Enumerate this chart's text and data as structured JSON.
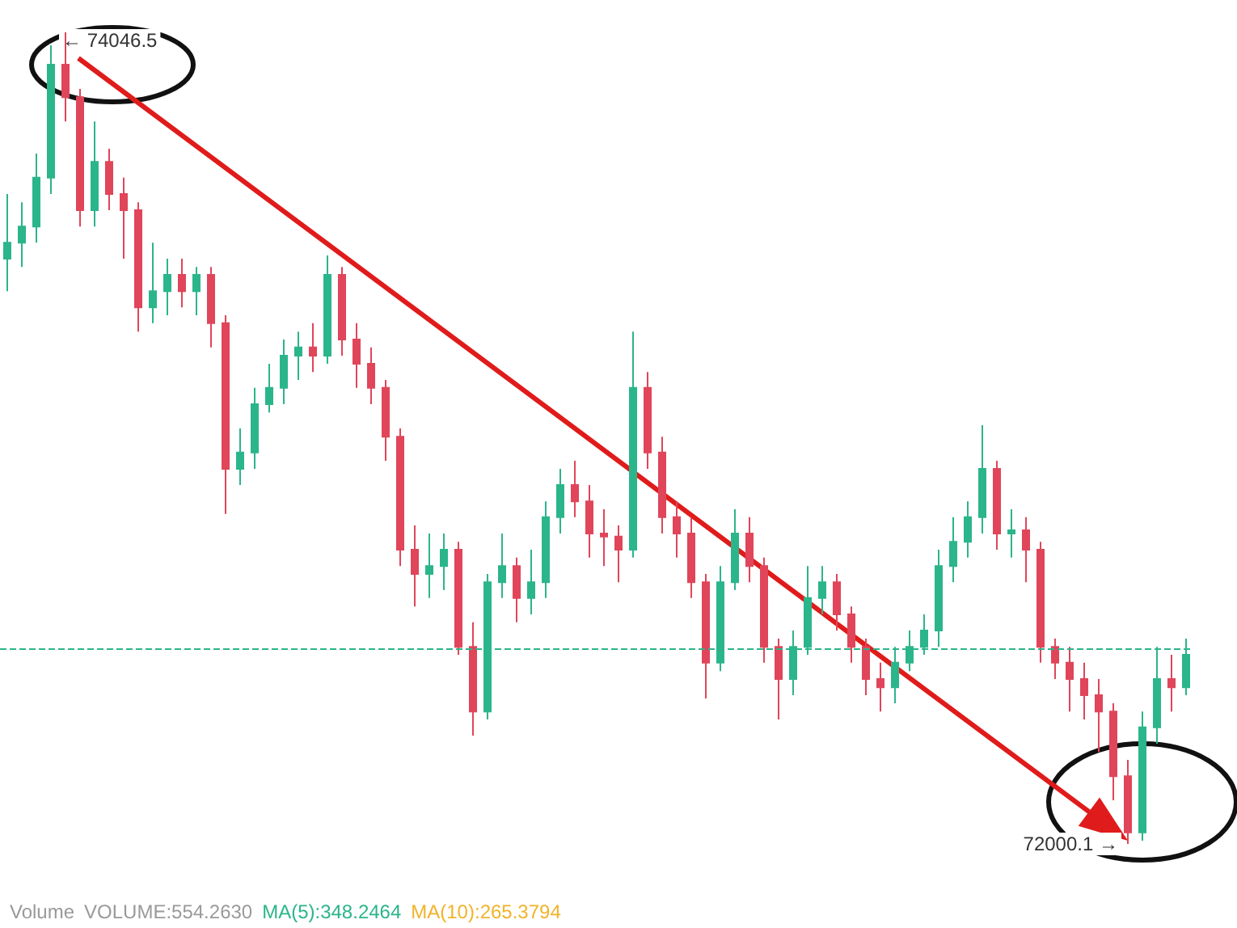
{
  "chart_data": {
    "type": "candlestick",
    "categories": [
      null,
      null,
      null,
      null,
      null,
      null,
      null,
      null,
      null,
      null,
      null,
      null,
      null,
      null,
      null,
      null,
      null,
      null,
      null,
      null,
      null,
      null,
      null,
      null,
      null,
      null,
      null,
      null,
      null,
      null,
      null,
      null,
      null,
      null,
      null,
      null,
      null,
      null,
      null,
      null,
      null,
      null,
      null,
      null,
      null,
      null,
      null,
      null,
      null,
      null,
      null,
      null,
      null,
      null,
      null,
      null,
      null,
      null,
      null,
      null,
      null,
      null,
      null,
      null,
      null,
      null,
      null,
      null,
      null,
      null,
      null,
      null,
      null,
      null,
      null,
      null,
      null,
      null,
      null,
      null,
      null,
      null
    ],
    "colors": [
      "#2bb58a",
      "#2bb58a",
      "#2bb58a",
      "#2bb58a",
      "#e0455a",
      "#e0455a",
      "#2bb58a",
      "#e0455a",
      "#e0455a",
      "#e0455a",
      "#2bb58a",
      "#2bb58a",
      "#e0455a",
      "#2bb58a",
      "#e0455a",
      "#e0455a",
      "#2bb58a",
      "#2bb58a",
      "#2bb58a",
      "#2bb58a",
      "#2bb58a",
      "#e0455a",
      "#2bb58a",
      "#e0455a",
      "#e0455a",
      "#e0455a",
      "#e0455a",
      "#e0455a",
      "#e0455a",
      "#2bb58a",
      "#2bb58a",
      "#e0455a",
      "#e0455a",
      "#2bb58a",
      "#2bb58a",
      "#e0455a",
      "#2bb58a",
      "#2bb58a",
      "#2bb58a",
      "#e0455a",
      "#e0455a",
      "#e0455a",
      "#e0455a",
      "#2bb58a",
      "#e0455a",
      "#e0455a",
      "#e0455a",
      "#e0455a",
      "#e0455a",
      "#2bb58a",
      "#2bb58a",
      "#e0455a",
      "#e0455a",
      "#e0455a",
      "#2bb58a",
      "#2bb58a",
      "#2bb58a",
      "#e0455a",
      "#e0455a",
      "#e0455a",
      "#e0455a",
      "#2bb58a",
      "#2bb58a",
      "#2bb58a",
      "#2bb58a",
      "#2bb58a",
      "#2bb58a",
      "#2bb58a",
      "#e0455a",
      "#2bb58a",
      "#e0455a",
      "#e0455a",
      "#e0455a",
      "#e0455a",
      "#e0455a",
      "#e0455a",
      "#e0455a",
      "#e0455a",
      "#2bb58a",
      "#2bb58a",
      "#e0455a",
      "#2bb58a"
    ],
    "ohlc": [
      [
        73476,
        73639,
        73394,
        73516
      ],
      [
        73516,
        73618,
        73455,
        73557
      ],
      [
        73557,
        73741,
        73516,
        73680
      ],
      [
        73680,
        74014,
        73639,
        73965
      ],
      [
        73965,
        74046.5,
        73822,
        73883
      ],
      [
        73883,
        73904,
        73557,
        73598
      ],
      [
        73598,
        73822,
        73557,
        73720
      ],
      [
        73720,
        73753,
        73598,
        73639
      ],
      [
        73639,
        73680,
        73476,
        73598
      ],
      [
        73598,
        73618,
        73292,
        73353
      ],
      [
        73353,
        73516,
        73313,
        73394
      ],
      [
        73394,
        73476,
        73333,
        73435
      ],
      [
        73435,
        73476,
        73353,
        73394
      ],
      [
        73394,
        73455,
        73333,
        73435
      ],
      [
        73435,
        73455,
        73252,
        73313
      ],
      [
        73313,
        73333,
        72832,
        72946
      ],
      [
        72946,
        73048,
        72905,
        72987
      ],
      [
        72987,
        73150,
        72946,
        73109
      ],
      [
        73109,
        73211,
        73088,
        73150
      ],
      [
        73150,
        73272,
        73109,
        73231
      ],
      [
        73231,
        73292,
        73170,
        73252
      ],
      [
        73252,
        73313,
        73190,
        73231
      ],
      [
        73231,
        73484,
        73211,
        73435
      ],
      [
        73435,
        73455,
        73231,
        73272
      ],
      [
        73272,
        73313,
        73150,
        73211
      ],
      [
        73211,
        73252,
        73109,
        73150
      ],
      [
        73150,
        73170,
        72966,
        73027
      ],
      [
        73027,
        73048,
        72701,
        72742
      ],
      [
        72742,
        72803,
        72599,
        72681
      ],
      [
        72681,
        72783,
        72620,
        72701
      ],
      [
        72701,
        72783,
        72640,
        72742
      ],
      [
        72742,
        72762,
        72477,
        72497
      ],
      [
        72497,
        72559,
        72273,
        72334
      ],
      [
        72334,
        72681,
        72314,
        72660
      ],
      [
        72660,
        72783,
        72620,
        72701
      ],
      [
        72701,
        72722,
        72559,
        72620
      ],
      [
        72620,
        72742,
        72579,
        72660
      ],
      [
        72660,
        72864,
        72620,
        72824
      ],
      [
        72824,
        72946,
        72783,
        72905
      ],
      [
        72905,
        72966,
        72824,
        72864
      ],
      [
        72864,
        72905,
        72722,
        72783
      ],
      [
        72783,
        72844,
        72701,
        72775
      ],
      [
        72775,
        72803,
        72660,
        72742
      ],
      [
        72742,
        73292,
        72722,
        73150
      ],
      [
        73150,
        73190,
        72946,
        72987
      ],
      [
        72987,
        73027,
        72783,
        72824
      ],
      [
        72824,
        72864,
        72722,
        72783
      ],
      [
        72783,
        72824,
        72620,
        72660
      ],
      [
        72660,
        72681,
        72367,
        72457
      ],
      [
        72457,
        72701,
        72436,
        72660
      ],
      [
        72660,
        72844,
        72640,
        72783
      ],
      [
        72783,
        72824,
        72660,
        72701
      ],
      [
        72701,
        72722,
        72457,
        72497
      ],
      [
        72497,
        72518,
        72314,
        72416
      ],
      [
        72416,
        72538,
        72375,
        72497
      ],
      [
        72497,
        72701,
        72477,
        72620
      ],
      [
        72620,
        72701,
        72579,
        72660
      ],
      [
        72660,
        72681,
        72538,
        72579
      ],
      [
        72579,
        72599,
        72457,
        72497
      ],
      [
        72497,
        72518,
        72375,
        72416
      ],
      [
        72416,
        72457,
        72334,
        72395
      ],
      [
        72395,
        72497,
        72355,
        72457
      ],
      [
        72457,
        72538,
        72436,
        72497
      ],
      [
        72497,
        72579,
        72477,
        72538
      ],
      [
        72538,
        72742,
        72497,
        72701
      ],
      [
        72701,
        72824,
        72660,
        72762
      ],
      [
        72762,
        72864,
        72722,
        72824
      ],
      [
        72824,
        73056,
        72783,
        72946
      ],
      [
        72946,
        72966,
        72742,
        72783
      ],
      [
        72783,
        72844,
        72722,
        72791
      ],
      [
        72791,
        72824,
        72660,
        72742
      ],
      [
        72742,
        72762,
        72457,
        72497
      ],
      [
        72497,
        72518,
        72416,
        72457
      ],
      [
        72457,
        72497,
        72334,
        72416
      ],
      [
        72416,
        72457,
        72314,
        72375
      ],
      [
        72375,
        72416,
        72232,
        72334
      ],
      [
        72334,
        72355,
        72110,
        72171
      ],
      [
        72171,
        72212,
        72000.1,
        72029
      ],
      [
        72029,
        72334,
        72008,
        72294
      ],
      [
        72294,
        72497,
        72253,
        72416
      ],
      [
        72416,
        72477,
        72334,
        72395
      ],
      [
        72395,
        72518,
        72375,
        72477
      ]
    ],
    "ref_lines": [
      {
        "axis": "y",
        "value": 72493,
        "color": "#2bb58a",
        "line_style": "dashed"
      }
    ],
    "annotations": [
      "← 74046.5",
      "72000.1 →",
      "Volume",
      "VOLUME:554.2630",
      "MA(5):348.2464",
      "MA(10):265.3794"
    ]
  }
}
